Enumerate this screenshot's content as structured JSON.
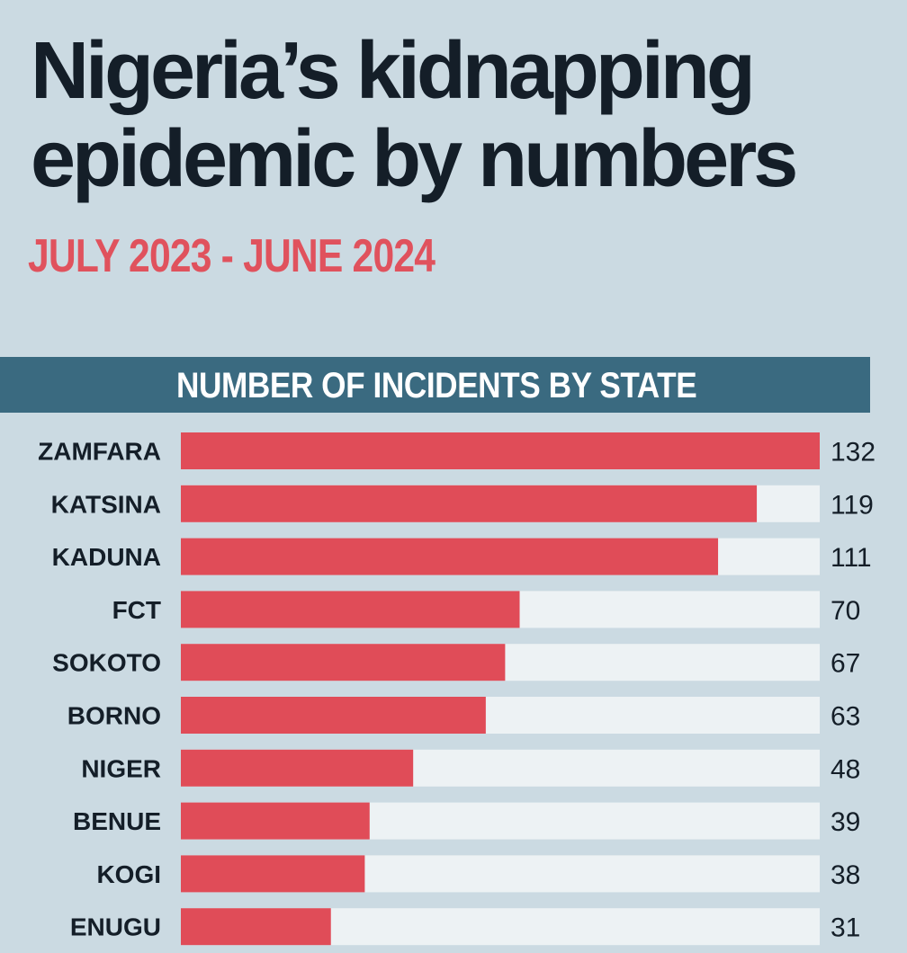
{
  "header": {
    "title_line1": "Nigeria’s kidnapping",
    "title_line2": "epidemic by numbers",
    "subtitle": "JULY 2023 - JUNE 2024"
  },
  "colors": {
    "background": "#cbdae2",
    "title": "#141e28",
    "accent_red": "#e04c58",
    "section_header_bg": "#3a6a80",
    "track": "#edf2f4"
  },
  "chart_data": {
    "type": "bar",
    "orientation": "horizontal",
    "title": "NUMBER OF INCIDENTS BY STATE",
    "categories": [
      "ZAMFARA",
      "KATSINA",
      "KADUNA",
      "FCT",
      "SOKOTO",
      "BORNO",
      "NIGER",
      "BENUE",
      "KOGI",
      "ENUGU"
    ],
    "values": [
      132,
      119,
      111,
      70,
      67,
      63,
      48,
      39,
      38,
      31
    ],
    "xlim": [
      0,
      132
    ],
    "grid": false,
    "data_labels": true
  }
}
